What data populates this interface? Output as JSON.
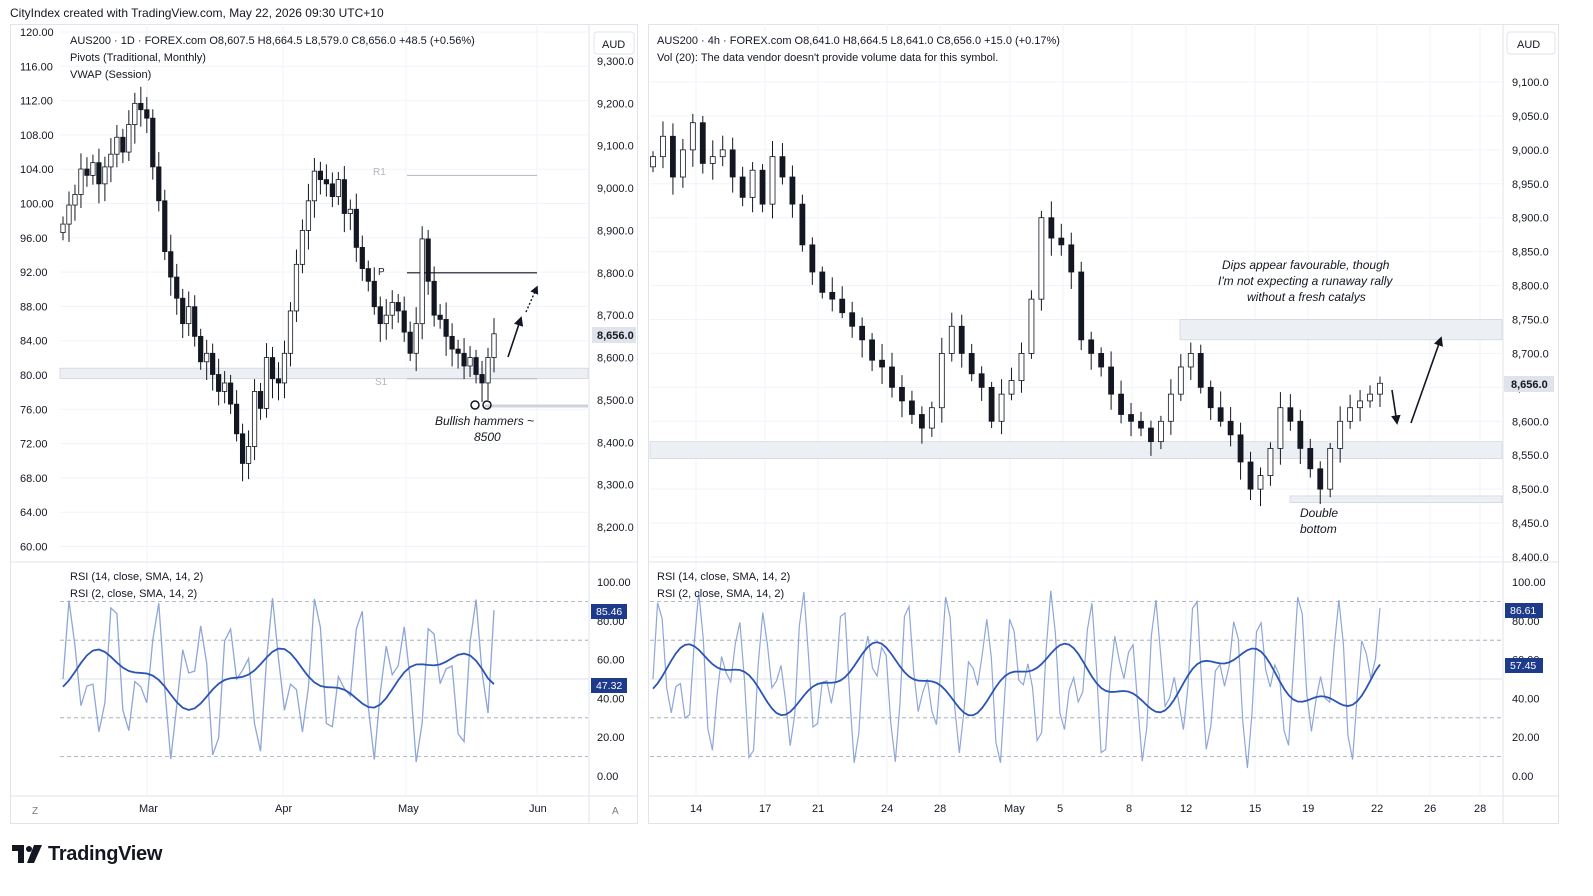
{
  "header": {
    "credit": "CityIndex created with TradingView.com, May 22, 2026 09:30 UTC+10"
  },
  "footer": {
    "brand": "TradingView"
  },
  "colors": {
    "candle": "#131722",
    "grid": "#f0f3fa",
    "rsi_line": "#2b54b5",
    "rsi_fast": "#8fa6d8",
    "zone": "#eceff4",
    "price_label_bg": "#e0e3eb"
  },
  "charts": {
    "left": {
      "legend": [
        "AUS200 · 1D · FOREX.com  O8,607.5  H8,664.5  L8,579.0  C8,656.0  +48.5 (+0.56%)",
        "Pivots (Traditional, Monthly)",
        "VWAP (Session)"
      ],
      "currency": "AUD",
      "left_axis": [
        "120.00",
        "116.00",
        "112.00",
        "108.00",
        "104.00",
        "100.00",
        "96.00",
        "92.00",
        "88.00",
        "84.00",
        "80.00",
        "76.00",
        "72.00",
        "68.00",
        "64.00",
        "60.00"
      ],
      "right_axis": [
        "9,300.0",
        "9,200.0",
        "9,100.0",
        "9,000.0",
        "8,900.0",
        "8,800.0",
        "8,700.0",
        "8,600.0",
        "8,500.0",
        "8,400.0",
        "8,300.0",
        "8,200.0"
      ],
      "last_price": "8,656.0",
      "pivot_labels": [
        "R1",
        "P",
        "S1"
      ],
      "annotation": [
        "Bullish hammers ~",
        "8500"
      ],
      "rsi_legend": [
        "RSI (14, close, SMA, 14, 2)",
        "RSI (2, close, SMA, 14, 2)"
      ],
      "rsi_axis": [
        "100.00",
        "80.00",
        "60.00",
        "40.00",
        "20.00",
        "0.00"
      ],
      "rsi_values": [
        "85.46",
        "47.32"
      ],
      "x_labels": [
        "Mar",
        "Apr",
        "May",
        "Jun"
      ],
      "corner_left": "Z",
      "corner_right": "A"
    },
    "right": {
      "legend": [
        "AUS200 · 4h · FOREX.com  O8,641.0  H8,664.5  L8,641.0  C8,656.0  +15.0 (+0.17%)",
        "Vol (20): The data vendor doesn't provide volume data for this symbol."
      ],
      "currency": "AUD",
      "right_axis": [
        "9,100.0",
        "9,050.0",
        "9,000.0",
        "8,950.0",
        "8,900.0",
        "8,850.0",
        "8,800.0",
        "8,750.0",
        "8,700.0",
        "8,650.0",
        "8,600.0",
        "8,550.0",
        "8,500.0",
        "8,450.0",
        "8,400.0"
      ],
      "last_price": "8,656.0",
      "annotation_top": [
        "Dips appear favourable, though",
        "I'm not expecting a runaway rally",
        "without a fresh catalys"
      ],
      "annotation_bottom": [
        "Double",
        "bottom"
      ],
      "rsi_legend": [
        "RSI (14, close, SMA, 14, 2)",
        "RSI (2, close, SMA, 14, 2)"
      ],
      "rsi_axis": [
        "100.00",
        "80.00",
        "60.00",
        "40.00",
        "20.00",
        "0.00"
      ],
      "rsi_values": [
        "86.61",
        "57.45"
      ],
      "x_labels": [
        "14",
        "17",
        "21",
        "24",
        "28",
        "May",
        "5",
        "8",
        "12",
        "15",
        "19",
        "22",
        "26",
        "28"
      ]
    }
  },
  "chart_data": [
    {
      "type": "candlestick",
      "title": "AUS200 · 1D · FOREX.com",
      "ylabel": "AUD",
      "ylim": [
        8150,
        9330
      ],
      "x_labels": [
        "Mar",
        "Apr",
        "May",
        "Jun"
      ],
      "closes": [
        8915,
        8960,
        8985,
        9045,
        9030,
        9060,
        9010,
        9050,
        9080,
        9120,
        9085,
        9150,
        9200,
        9185,
        9165,
        9050,
        8970,
        8850,
        8790,
        8740,
        8680,
        8720,
        8650,
        8590,
        8610,
        8560,
        8520,
        8540,
        8490,
        8420,
        8350,
        8390,
        8520,
        8480,
        8600,
        8550,
        8540,
        8610,
        8710,
        8820,
        8900,
        8970,
        9040,
        9020,
        9010,
        8980,
        9020,
        8940,
        8950,
        8860,
        8810,
        8780,
        8720,
        8680,
        8700,
        8730,
        8710,
        8660,
        8610,
        8680,
        8880,
        8780,
        8700,
        8690,
        8650,
        8620,
        8610,
        8580,
        8600,
        8560,
        8540,
        8600,
        8656
      ],
      "pivots": {
        "R1": 9030,
        "P": 8800,
        "S1": 8550
      },
      "support_zone": [
        8550,
        8575
      ],
      "rsi14_last": 47.32,
      "rsi2_last": 85.46
    },
    {
      "type": "candlestick",
      "title": "AUS200 · 4h · FOREX.com",
      "ylabel": "AUD",
      "ylim": [
        8390,
        9130
      ],
      "x_labels": [
        "14",
        "17",
        "21",
        "24",
        "28",
        "May",
        "5",
        "8",
        "12",
        "15",
        "19",
        "22",
        "26",
        "28"
      ],
      "closes": [
        8990,
        9020,
        8960,
        9000,
        9040,
        8980,
        8990,
        9000,
        8960,
        8930,
        8970,
        8920,
        8990,
        8960,
        8920,
        8860,
        8820,
        8790,
        8780,
        8760,
        8740,
        8720,
        8690,
        8680,
        8650,
        8630,
        8610,
        8590,
        8620,
        8700,
        8740,
        8700,
        8670,
        8650,
        8600,
        8640,
        8660,
        8700,
        8780,
        8900,
        8870,
        8860,
        8820,
        8720,
        8700,
        8680,
        8640,
        8610,
        8600,
        8590,
        8570,
        8600,
        8640,
        8680,
        8700,
        8650,
        8620,
        8600,
        8580,
        8540,
        8500,
        8520,
        8560,
        8620,
        8600,
        8560,
        8530,
        8500,
        8560,
        8600,
        8620,
        8630,
        8640,
        8656
      ],
      "zones": [
        [
          8720,
          8750
        ],
        [
          8545,
          8570
        ],
        [
          8480,
          8490
        ]
      ],
      "rsi14_last": 57.45,
      "rsi2_last": 86.61
    }
  ]
}
